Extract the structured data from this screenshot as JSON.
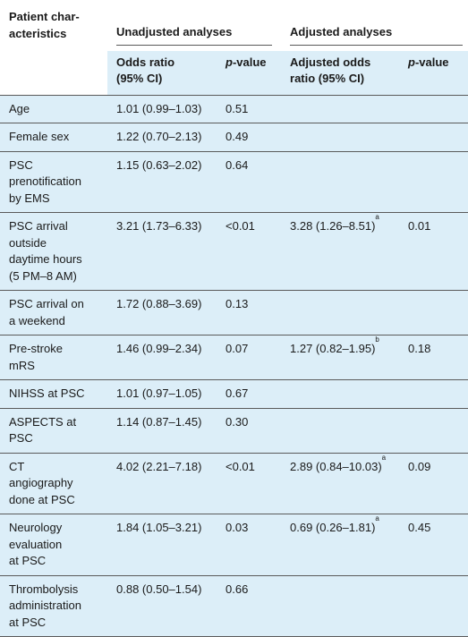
{
  "header": {
    "row_label": "Patient char-\nacteristics",
    "unadjusted_group": "Unadjusted analyses",
    "adjusted_group": "Adjusted analyses",
    "col_or": "Odds ratio\n(95% CI)",
    "col_p_italic": "p",
    "col_p_rest": "-value",
    "col_aor": "Adjusted odds\nratio (95% CI)",
    "col_p2_italic": "p",
    "col_p2_rest": "-value"
  },
  "rows": [
    {
      "label": "Age",
      "or": "1.01 (0.99–1.03)",
      "p": "0.51",
      "aor": "",
      "aor_sup": "",
      "ap": ""
    },
    {
      "label": "Female sex",
      "or": "1.22 (0.70–2.13)",
      "p": "0.49",
      "aor": "",
      "aor_sup": "",
      "ap": ""
    },
    {
      "label": "PSC\nprenotification\nby EMS",
      "or": "1.15 (0.63–2.02)",
      "p": "0.64",
      "aor": "",
      "aor_sup": "",
      "ap": ""
    },
    {
      "label": "PSC arrival\noutside\ndaytime hours\n(5 PM–8 AM)",
      "or": "3.21 (1.73–6.33)",
      "p": "<0.01",
      "aor": "3.28 (1.26–8.51)",
      "aor_sup": "a",
      "ap": "0.01"
    },
    {
      "label": "PSC arrival on\na weekend",
      "or": "1.72 (0.88–3.69)",
      "p": "0.13",
      "aor": "",
      "aor_sup": "",
      "ap": ""
    },
    {
      "label": "Pre-stroke\nmRS",
      "or": "1.46 (0.99–2.34)",
      "p": "0.07",
      "aor": "1.27 (0.82–1.95)",
      "aor_sup": "b",
      "ap": "0.18"
    },
    {
      "label": "NIHSS at PSC",
      "or": "1.01 (0.97–1.05)",
      "p": "0.67",
      "aor": "",
      "aor_sup": "",
      "ap": ""
    },
    {
      "label": "ASPECTS at\nPSC",
      "or": "1.14 (0.87–1.45)",
      "p": "0.30",
      "aor": "",
      "aor_sup": "",
      "ap": ""
    },
    {
      "label": "CT\nangiography\ndone at PSC",
      "or": "4.02 (2.21–7.18)",
      "p": "<0.01",
      "aor": "2.89 (0.84–10.03)",
      "aor_sup": "a",
      "ap": "0.09"
    },
    {
      "label": "Neurology\nevaluation\nat PSC",
      "or": "1.84 (1.05–3.21)",
      "p": "0.03",
      "aor": "0.69 (0.26–1.81)",
      "aor_sup": "a",
      "ap": "0.45"
    },
    {
      "label": "Thrombolysis\nadministration\nat PSC",
      "or": "0.88 (0.50–1.54)",
      "p": "0.66",
      "aor": "",
      "aor_sup": "",
      "ap": ""
    }
  ]
}
